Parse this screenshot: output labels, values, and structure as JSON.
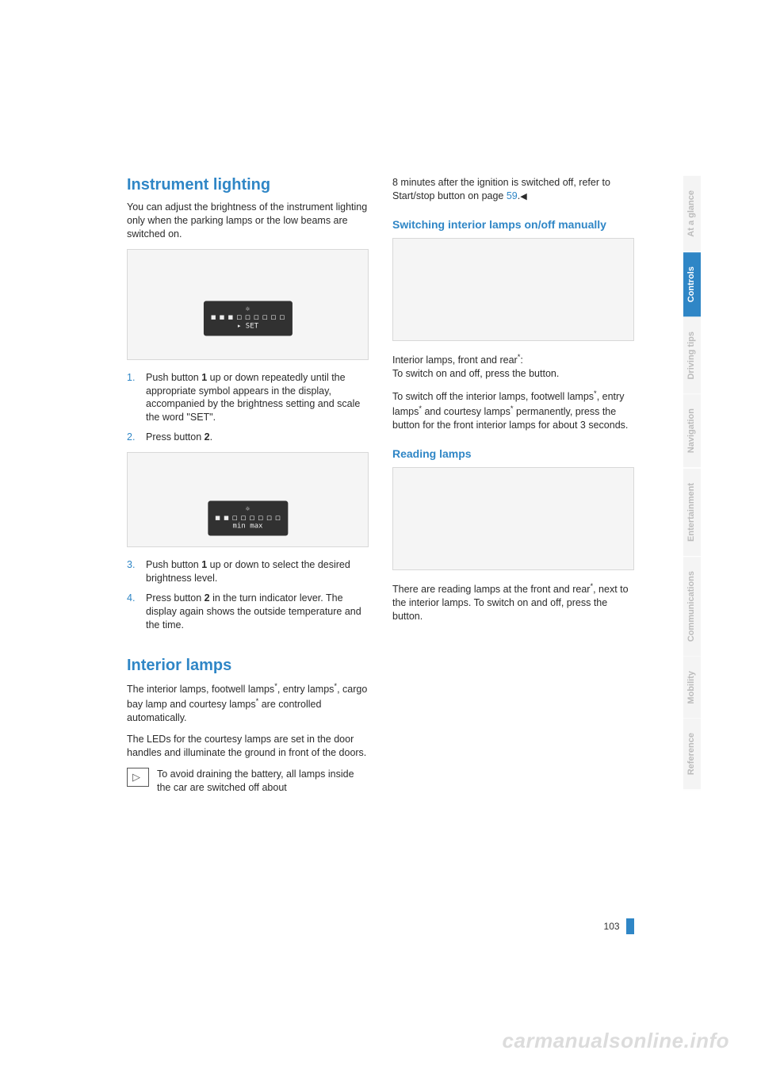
{
  "left": {
    "h1": "Instrument lighting",
    "intro": "You can adjust the brightness of the instrument lighting only when the parking lamps or the low beams are switched on.",
    "fig1_code": "",
    "fig1_display_top": "☼",
    "fig1_display_boxes": "■ ■ ■ □ □ □ □ □ □",
    "fig1_display_set": "▸ SET",
    "steps12": [
      {
        "n": "1.",
        "t": "Push button 1 up or down repeatedly until the appropriate symbol appears in the display, accompanied by the brightness setting and scale the word \"SET\"."
      },
      {
        "n": "2.",
        "t": "Press button 2."
      }
    ],
    "fig2_display_top": "☼",
    "fig2_display_boxes": "■ ■ □ □ □ □ □ □",
    "fig2_display_minmax": "min          max",
    "steps34": [
      {
        "n": "3.",
        "t": "Push button 1 up or down to select the desired brightness level."
      },
      {
        "n": "4.",
        "t": "Press button 2 in the turn indicator lever. The display again shows the outside temperature and the time."
      }
    ],
    "h2": "Interior lamps",
    "p1_pre": "The interior lamps, footwell lamps",
    "p1_mid": ", entry lamps",
    "p1_mid2": ", cargo bay lamp and courtesy lamps",
    "p1_post": " are controlled automatically.",
    "p2": "The LEDs for the courtesy lamps are set in the door handles and illuminate the ground in front of the doors.",
    "note": "To avoid draining the battery, all lamps inside the car are switched off about"
  },
  "right": {
    "cont_pre": "8 minutes after the ignition is switched off, refer to Start/stop button on page ",
    "cont_link": "59",
    "cont_post": ".",
    "h2a": "Switching interior lamps on/off manually",
    "p_int1_pre": "Interior lamps, front and rear",
    "p_int1_post": ":",
    "p_int1_line2": "To switch on and off, press the button.",
    "p_int2_pre": "To switch off the interior lamps, footwell lamps",
    "p_int2_mid1": ", entry lamps",
    "p_int2_mid2": " and courtesy lamps",
    "p_int2_post": " permanently, press the button for the front interior lamps for about 3 seconds.",
    "h2b": "Reading lamps",
    "p_read_pre": "There are reading lamps at the front and rear",
    "p_read_post": ", next to the interior lamps. To switch on and off, press the button."
  },
  "tabs": [
    "Reference",
    "Mobility",
    "Communications",
    "Entertainment",
    "Navigation",
    "Driving tips",
    "Controls",
    "At a glance"
  ],
  "active_tab_index": 6,
  "page_number": "103",
  "watermark": "carmanualsonline.info",
  "asterisk": "*",
  "tri": "◀"
}
